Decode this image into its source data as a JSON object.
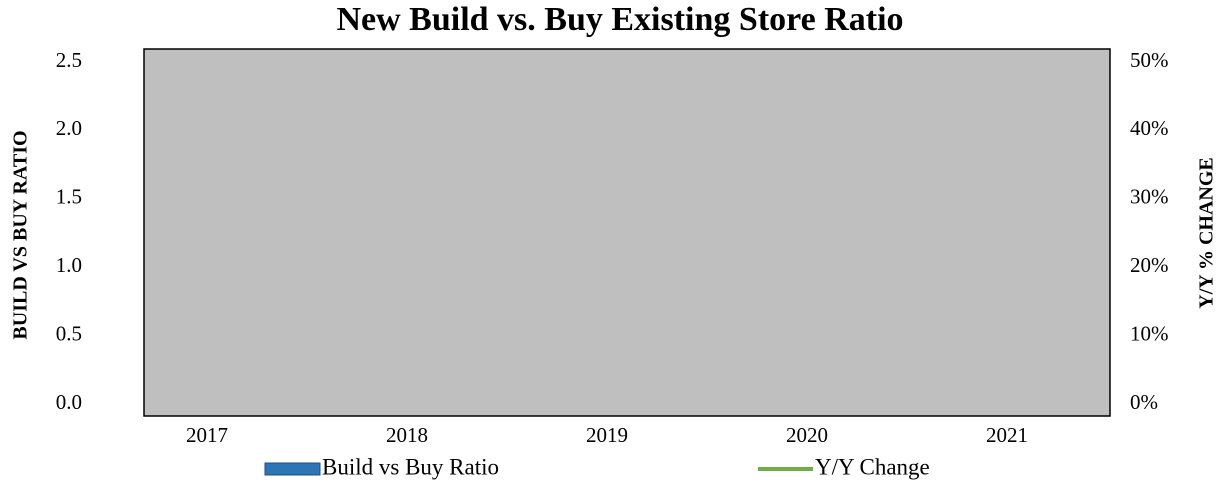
{
  "chart_data": {
    "type": "bar",
    "title": "New Build vs. Buy Existing Store Ratio",
    "ylabel": "BUILD VS BUY RATIO",
    "y2label": "Y/Y % CHANGE",
    "categories": [
      "2017",
      "2018",
      "2019",
      "2020",
      "2021"
    ],
    "series": [
      {
        "name": "Build vs Buy Ratio",
        "color": "#2e75b6",
        "values": [
          null,
          null,
          null,
          null,
          null
        ]
      },
      {
        "name": "Y/Y Change",
        "color": "#70ad47",
        "values": [
          null,
          null,
          null,
          null,
          null
        ],
        "axis": "y2",
        "type": "line"
      }
    ],
    "ylim": [
      0,
      2.5
    ],
    "yticks": [
      {
        "value": 0,
        "label": "0.0"
      },
      {
        "value": 0.5,
        "label": "0.5"
      },
      {
        "value": 1,
        "label": "1.0"
      },
      {
        "value": 1.5,
        "label": "1.5"
      },
      {
        "value": 2,
        "label": "2.0"
      },
      {
        "value": 2.5,
        "label": "2.5"
      }
    ],
    "y2lim": [
      0,
      50
    ],
    "y2ticks": [
      {
        "value": 0,
        "label": "0%"
      },
      {
        "value": 10,
        "label": "10%"
      },
      {
        "value": 20,
        "label": "20%"
      },
      {
        "value": 30,
        "label": "30%"
      },
      {
        "value": 40,
        "label": "40%"
      },
      {
        "value": 50,
        "label": "50%"
      }
    ],
    "legend": "bottom"
  }
}
